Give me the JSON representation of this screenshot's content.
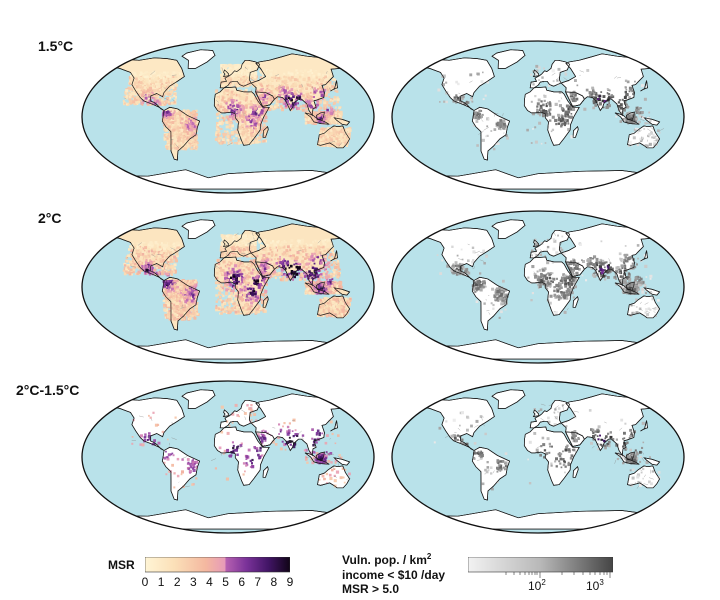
{
  "rows": [
    {
      "label": "1.5°C"
    },
    {
      "label": "2°C"
    },
    {
      "label": "2°C-1.5°C"
    }
  ],
  "colors": {
    "ocean": "#b9e2ea",
    "land_bg": "#ffffff",
    "coast": "#1a1a1a",
    "msr_low": "#fdf0c8",
    "msr_mid": "#ea8e86",
    "msr_high": "#2b0a3d"
  },
  "msr_colorbar": {
    "title": "MSR",
    "ticks": [
      "0",
      "1",
      "2",
      "3",
      "4",
      "5",
      "6",
      "7",
      "8",
      "9"
    ],
    "stops": [
      "#fff5d6",
      "#fde7c3",
      "#f7d0ad",
      "#f3b59d",
      "#e99bb0",
      "#c86bb5",
      "#8a3c9f",
      "#5a1f7a",
      "#2b0a3d",
      "#120418"
    ]
  },
  "vuln_colorbar": {
    "title_line1": "Vuln. pop. / km",
    "title_sup": "2",
    "title_line2": "income < $10 /day",
    "title_line3": "MSR > 5.0",
    "tick_1": "10",
    "tick_1_exp": "2",
    "tick_2": "10",
    "tick_2_exp": "3"
  }
}
